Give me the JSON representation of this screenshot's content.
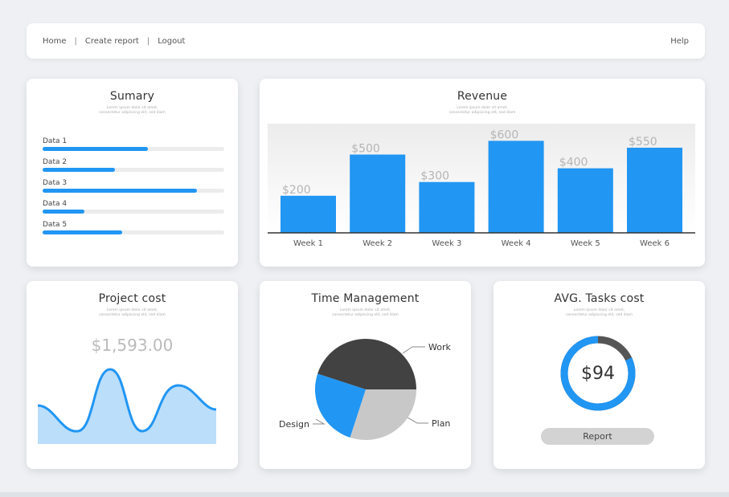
{
  "nav": {
    "home": "Home",
    "create_report": "Create report",
    "logout": "Logout",
    "help": "Help",
    "separator": "|"
  },
  "summary": {
    "title": "Sumary",
    "subtitle_line1": "Lorem ipsum dolor sit amet,",
    "subtitle_line2": "consectetur adipiscing elit, sed diam",
    "items": [
      {
        "label": "Data 1",
        "value": 0.58
      },
      {
        "label": "Data 2",
        "value": 0.4
      },
      {
        "label": "Data 3",
        "value": 0.85
      },
      {
        "label": "Data 4",
        "value": 0.23
      },
      {
        "label": "Data 5",
        "value": 0.44
      }
    ],
    "accent": "#2196f3",
    "track": "#ececec"
  },
  "revenue": {
    "title": "Revenue",
    "subtitle_line1": "Lorem ipsum dolor sit amet,",
    "subtitle_line2": "consectetur adipiscing elit, sed diam",
    "chart_data": {
      "type": "bar",
      "categories": [
        "Week 1",
        "Week 2",
        "Week 3",
        "Week 4",
        "Week 5",
        "Week 6"
      ],
      "values": [
        200,
        500,
        300,
        600,
        400,
        550
      ],
      "data_labels": [
        "$200",
        "$500",
        "$300",
        "$600",
        "$400",
        "$550"
      ],
      "ylim": [
        0,
        700
      ],
      "color": "#2196f3",
      "grid": false
    }
  },
  "project_cost": {
    "title": "Project cost",
    "subtitle_line1": "Lorem ipsum dolor sit amet,",
    "subtitle_line2": "consectetur adipiscing elit, sed diam",
    "value": "$1,593.00",
    "line_color": "#2196f3",
    "fill_color": "#bbdefb"
  },
  "time_management": {
    "title": "Time Management",
    "subtitle_line1": "Lorem ipsum dolor sit amet,",
    "subtitle_line2": "consectetur adipiscing elit, sed diam",
    "chart_data": {
      "type": "pie",
      "labels": [
        "Work",
        "Plan",
        "Design"
      ],
      "values": [
        45,
        30,
        25
      ],
      "colors": [
        "#424242",
        "#c8c8c8",
        "#2196f3"
      ]
    }
  },
  "avg_tasks": {
    "title": "AVG. Tasks cost",
    "subtitle_line1": "Lorem ipsum dolor sit amet,",
    "subtitle_line2": "consectetur adipiscing elit, sed diam",
    "value": "$94",
    "progress": 0.82,
    "ring_color": "#2196f3",
    "ring_rest_color": "#555555",
    "button_label": "Report"
  }
}
